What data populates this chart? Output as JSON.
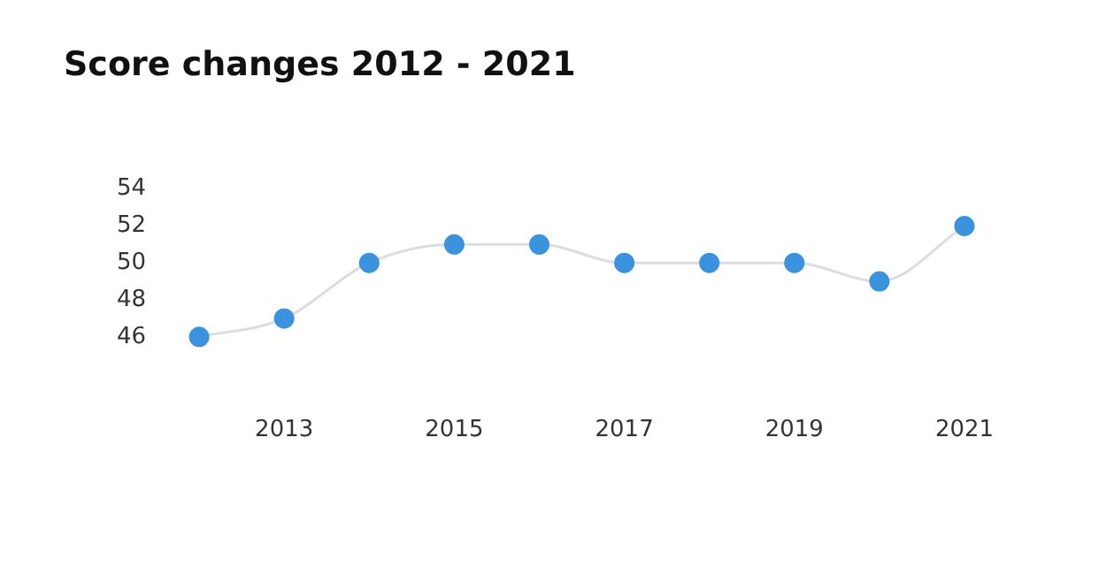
{
  "chart_data": {
    "type": "line",
    "title": "Score changes 2012 - 2021",
    "categories": [
      null,
      "2013",
      null,
      "2015",
      null,
      "2017",
      null,
      "2019",
      null,
      "2021"
    ],
    "series": [
      {
        "color": "#dddddd",
        "colors": [
          "#3a93dc",
          "#3a93dc",
          "#3a93dc",
          "#3a93dc",
          "#3a93dc",
          "#3a93dc",
          "#3a93dc",
          "#3a93dc",
          "#3a93dc",
          "#3a93dc"
        ],
        "values": [
          46,
          47,
          50,
          51,
          51,
          50,
          50,
          50,
          49,
          52
        ]
      }
    ],
    "ylim": [
      46,
      54
    ],
    "yticks": [
      46,
      48,
      50,
      52,
      54
    ],
    "grid": false,
    "legend": false,
    "marker": "circle"
  }
}
